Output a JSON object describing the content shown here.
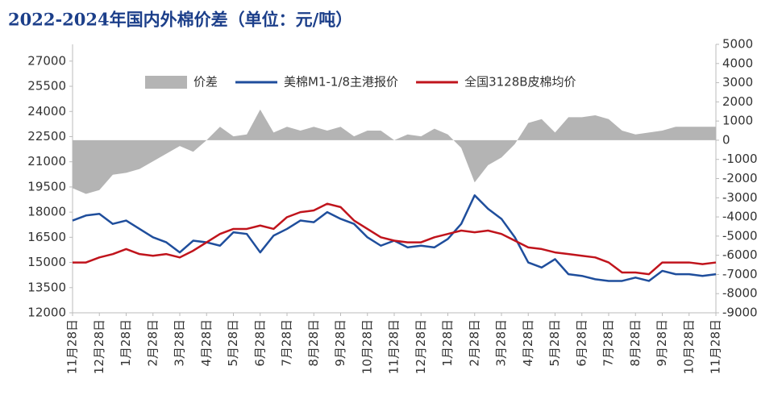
{
  "chart_data": {
    "type": "line",
    "title": "2022-2024年国内外棉价差（单位：元/吨）",
    "categories": [
      "11月28日",
      null,
      "12月28日",
      null,
      "1月28日",
      null,
      "2月28日",
      null,
      "3月28日",
      null,
      "4月28日",
      null,
      "5月28日",
      null,
      "6月28日",
      null,
      "7月28日",
      null,
      "8月28日",
      null,
      "9月28日",
      null,
      "10月28日",
      null,
      "11月28日",
      null,
      "12月28日",
      null,
      "1月28日",
      null,
      "2月28日",
      null,
      "3月28日",
      null,
      "4月28日",
      null,
      "5月28日",
      null,
      "6月28日",
      null,
      "7月28日",
      null,
      "8月28日",
      null,
      "9月28日",
      null,
      "10月28日",
      null,
      "11月28日"
    ],
    "series": [
      {
        "name": "价差",
        "color": "#b4b4b4",
        "axis": "y2",
        "kind": "area",
        "values": [
          -2500,
          -2800,
          -2600,
          -1800,
          -1700,
          -1500,
          -1100,
          -700,
          -300,
          -600,
          0,
          700,
          200,
          300,
          1600,
          400,
          700,
          500,
          700,
          500,
          700,
          200,
          500,
          500,
          0,
          300,
          200,
          600,
          300,
          -400,
          -2200,
          -1300,
          -900,
          -200,
          900,
          1100,
          400,
          1200,
          1200,
          1300,
          1100,
          500,
          300,
          400,
          500,
          700,
          700,
          700,
          700
        ]
      },
      {
        "name": "美棉M1-1/8主港报价",
        "color": "#1f4e9c",
        "kind": "line",
        "values": [
          17500,
          17800,
          17900,
          17300,
          17500,
          17000,
          16500,
          16200,
          15600,
          16300,
          16200,
          16000,
          16800,
          16700,
          15600,
          16600,
          17000,
          17500,
          17400,
          18000,
          17600,
          17300,
          16500,
          16000,
          16300,
          15900,
          16000,
          15900,
          16400,
          17300,
          19000,
          18200,
          17600,
          16500,
          15000,
          14700,
          15200,
          14300,
          14200,
          14000,
          13900,
          13900,
          14100,
          13900,
          14500,
          14300,
          14300,
          14200,
          14300
        ]
      },
      {
        "name": "全国3128B皮棉均价",
        "color": "#c0141c",
        "kind": "line",
        "values": [
          15000,
          15000,
          15300,
          15500,
          15800,
          15500,
          15400,
          15500,
          15300,
          15700,
          16200,
          16700,
          17000,
          17000,
          17200,
          17000,
          17700,
          18000,
          18100,
          18500,
          18300,
          17500,
          17000,
          16500,
          16300,
          16200,
          16200,
          16500,
          16700,
          16900,
          16800,
          16900,
          16700,
          16300,
          15900,
          15800,
          15600,
          15500,
          15400,
          15300,
          15000,
          14400,
          14400,
          14300,
          15000,
          15000,
          15000,
          14900,
          15000
        ]
      }
    ],
    "ylim": [
      12000,
      28000
    ],
    "yticks": [
      12000,
      13500,
      15000,
      16500,
      18000,
      19500,
      21000,
      22500,
      24000,
      25500,
      27000
    ],
    "y2lim": [
      -9000,
      5000
    ],
    "y2ticks": [
      -9000,
      -8000,
      -7000,
      -6000,
      -5000,
      -4000,
      -3000,
      -2000,
      -1000,
      0,
      1000,
      2000,
      3000,
      4000,
      5000
    ],
    "grid": false,
    "legend": "top"
  }
}
